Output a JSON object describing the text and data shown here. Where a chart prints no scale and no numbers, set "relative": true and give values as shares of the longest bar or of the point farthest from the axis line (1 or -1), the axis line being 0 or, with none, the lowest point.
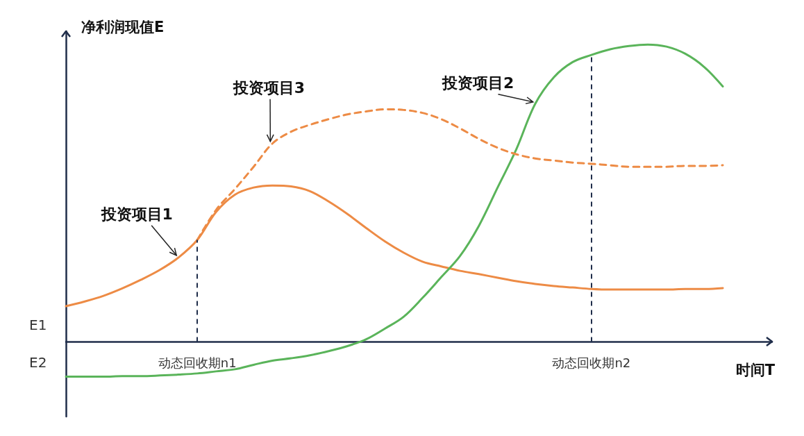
{
  "chart_data": {
    "type": "line",
    "relative": true,
    "xlabel": "时间T",
    "ylabel": "净利润现值E",
    "categories": [
      null,
      null,
      null,
      null,
      null,
      null,
      null,
      null,
      null,
      null,
      null,
      null,
      null,
      null,
      null,
      null,
      null,
      null,
      null,
      null,
      null,
      null,
      null,
      null,
      null,
      null,
      null,
      null,
      null,
      null,
      null,
      null,
      null,
      null,
      null,
      null
    ],
    "series": [
      {
        "name": "投资项目1",
        "color": "#ed8b45",
        "values": [
          0.12,
          0.136,
          0.155,
          0.18,
          0.209,
          0.242,
          0.284,
          0.343,
          0.437,
          0.495,
          0.519,
          0.526,
          0.523,
          0.507,
          0.472,
          0.43,
          0.383,
          0.338,
          0.3,
          0.27,
          0.254,
          0.239,
          0.228,
          0.216,
          0.204,
          0.195,
          0.188,
          0.183,
          0.178,
          0.176,
          0.176,
          0.176,
          0.176,
          0.178,
          0.178,
          0.181
        ]
      },
      {
        "name": "投资项目2",
        "color": "#5ab45a",
        "values": [
          -0.117,
          -0.117,
          -0.117,
          -0.115,
          -0.115,
          -0.113,
          -0.11,
          -0.106,
          -0.099,
          -0.092,
          -0.077,
          -0.063,
          -0.055,
          -0.045,
          -0.031,
          -0.014,
          0.009,
          0.045,
          0.085,
          0.148,
          0.218,
          0.289,
          0.39,
          0.519,
          0.648,
          0.8,
          0.89,
          0.941,
          0.965,
          0.984,
          0.995,
          1,
          0.993,
          0.969,
          0.925,
          0.859
        ]
      },
      {
        "name": "投资项目3",
        "color": "#ed8b45",
        "line_style": "dashed",
        "values": [
          null,
          null,
          null,
          null,
          null,
          null,
          null,
          0.343,
          0.444,
          0.514,
          0.589,
          0.667,
          0.707,
          0.73,
          0.749,
          0.765,
          0.775,
          0.782,
          0.78,
          0.77,
          0.749,
          0.718,
          0.683,
          0.653,
          0.631,
          0.617,
          0.61,
          0.603,
          0.599,
          0.594,
          0.589,
          0.589,
          0.589,
          0.592,
          0.592,
          0.594
        ]
      }
    ],
    "annotations": [
      "E1",
      "E2",
      "动态回收期n1",
      "动态回收期n2"
    ],
    "marker": "none",
    "grid": false,
    "legend": false
  }
}
